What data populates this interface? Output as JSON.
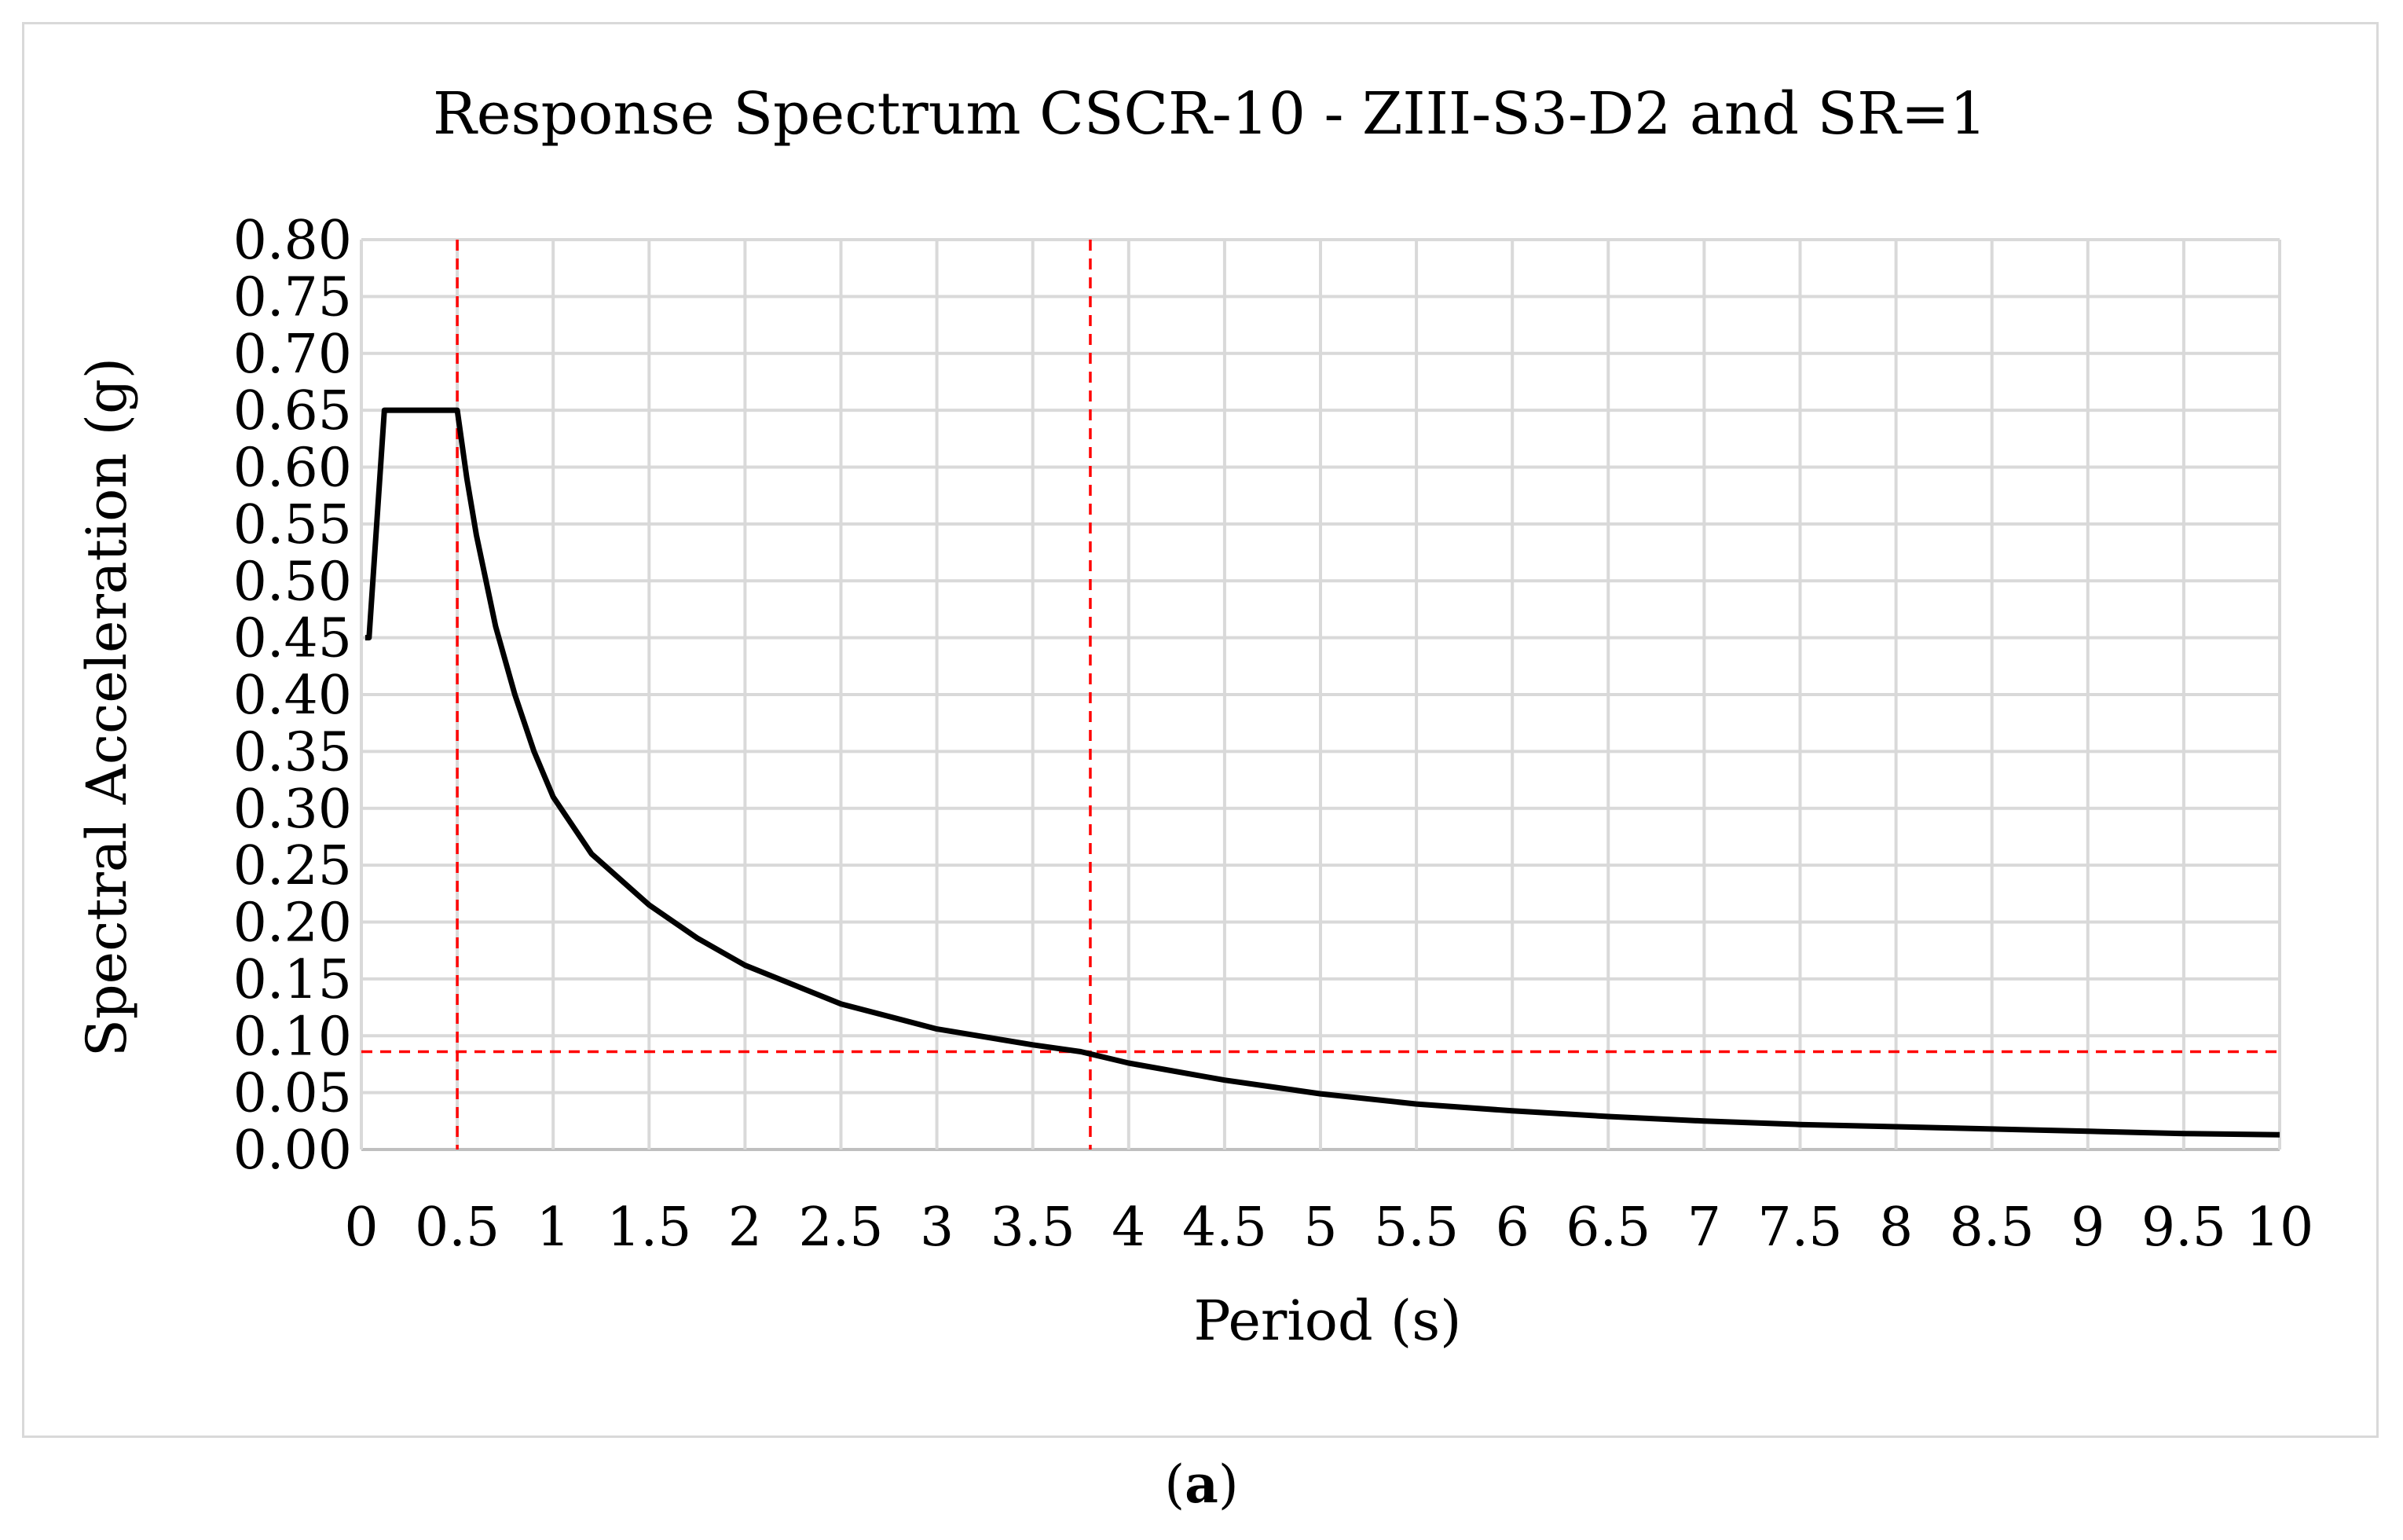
{
  "caption": {
    "open": "(",
    "label": "a",
    "close": ")"
  },
  "chart_data": {
    "type": "line",
    "title": "Response Spectrum CSCR-10 - ZIII-S3-D2 and SR=1",
    "xlabel": "Period (s)",
    "ylabel": "Spectral Acceleration (g)",
    "xlim": [
      0,
      10
    ],
    "ylim": [
      0,
      0.8
    ],
    "x_ticks": [
      "0",
      "0.5",
      "1",
      "1.5",
      "2",
      "2.5",
      "3",
      "3.5",
      "4",
      "4.5",
      "5",
      "5.5",
      "6",
      "6.5",
      "7",
      "7.5",
      "8",
      "8.5",
      "9",
      "9.5",
      "10"
    ],
    "y_ticks": [
      "0.00",
      "0.05",
      "0.10",
      "0.15",
      "0.20",
      "0.25",
      "0.30",
      "0.35",
      "0.40",
      "0.45",
      "0.50",
      "0.55",
      "0.60",
      "0.65",
      "0.70",
      "0.75",
      "0.80"
    ],
    "grid": true,
    "series": [
      {
        "name": "Spectral Acceleration",
        "color": "#000000",
        "x": [
          0.02,
          0.04,
          0.12,
          0.5,
          0.55,
          0.6,
          0.7,
          0.8,
          0.9,
          1.0,
          1.2,
          1.5,
          1.75,
          2.0,
          2.5,
          3.0,
          3.5,
          3.75,
          4.0,
          4.5,
          5.0,
          5.5,
          6.0,
          6.5,
          7.0,
          7.5,
          8.0,
          8.5,
          9.0,
          9.5,
          10.0
        ],
        "y": [
          0.45,
          0.45,
          0.65,
          0.65,
          0.59,
          0.54,
          0.46,
          0.4,
          0.35,
          0.31,
          0.26,
          0.215,
          0.186,
          0.162,
          0.128,
          0.106,
          0.092,
          0.086,
          0.076,
          0.061,
          0.049,
          0.04,
          0.034,
          0.029,
          0.025,
          0.022,
          0.02,
          0.018,
          0.016,
          0.014,
          0.013
        ]
      }
    ],
    "reference_lines": [
      {
        "name": "vline-0.5",
        "orientation": "vertical",
        "value": 0.5,
        "color": "#ff0000",
        "style": "dashed"
      },
      {
        "name": "vline-3.8",
        "orientation": "vertical",
        "value": 3.8,
        "color": "#ff0000",
        "style": "dashed"
      },
      {
        "name": "hline-0.086",
        "orientation": "horizontal",
        "value": 0.086,
        "color": "#ff0000",
        "style": "dashed"
      }
    ],
    "colors": {
      "grid": "#d9d9d9",
      "axis": "#bfbfbf",
      "frame": "#d9d9d9"
    }
  }
}
